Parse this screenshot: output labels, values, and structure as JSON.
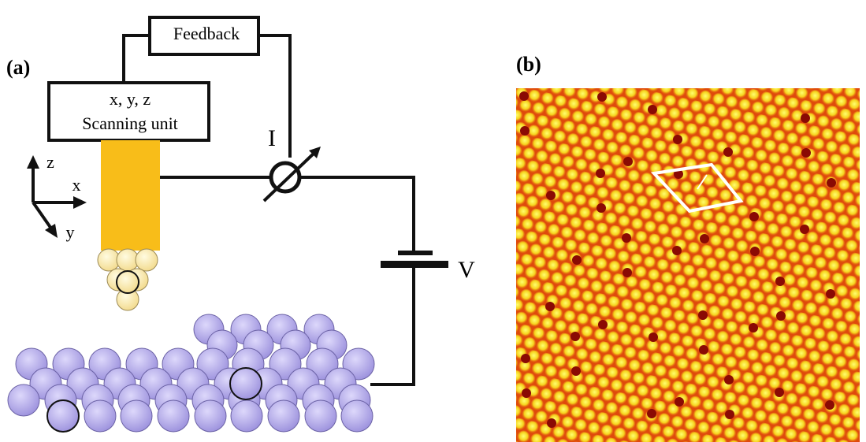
{
  "panel_a": {
    "label": "(a)",
    "feedback": "Feedback",
    "scanning_unit": {
      "line1": "x, y, z",
      "line2": "Scanning unit"
    },
    "current": "I",
    "voltage": "V",
    "axes": {
      "z": "z",
      "x": "x",
      "y": "y"
    }
  },
  "panel_b": {
    "label": "(b)"
  }
}
